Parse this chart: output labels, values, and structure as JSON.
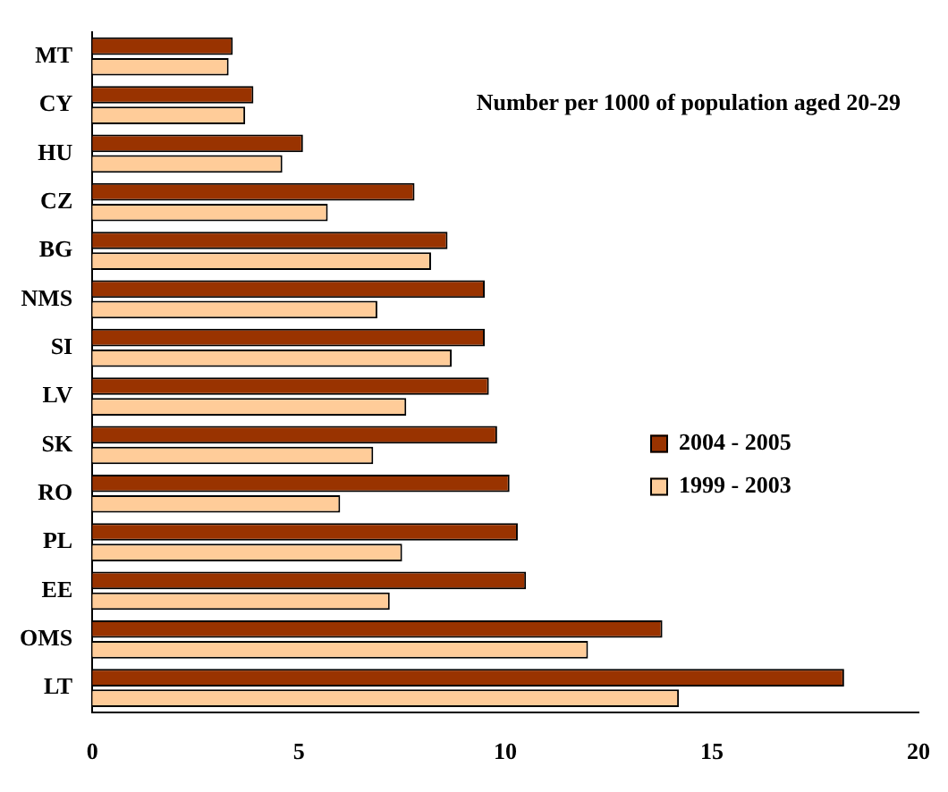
{
  "chart_data": {
    "type": "bar",
    "orientation": "horizontal",
    "categories": [
      "MT",
      "CY",
      "HU",
      "CZ",
      "BG",
      "NMS",
      "SI",
      "LV",
      "SK",
      "RO",
      "PL",
      "EE",
      "OMS",
      "LT"
    ],
    "series": [
      {
        "name": "2004 - 2005",
        "color": "#993300",
        "values": [
          3.4,
          3.9,
          5.1,
          7.8,
          8.6,
          9.5,
          9.5,
          9.6,
          9.8,
          10.1,
          10.3,
          10.5,
          13.8,
          18.2
        ]
      },
      {
        "name": "1999 - 2003",
        "color": "#ffcc99",
        "values": [
          3.3,
          3.7,
          4.6,
          5.7,
          8.2,
          6.9,
          8.7,
          7.6,
          6.8,
          6.0,
          7.5,
          7.2,
          12.0,
          14.2
        ]
      }
    ],
    "xlim": [
      0,
      20
    ],
    "xticks": [
      0,
      5,
      10,
      15,
      20
    ],
    "annotations": [
      "Number per 1000 of population aged 20-29"
    ],
    "legend": "right",
    "grid": false
  }
}
